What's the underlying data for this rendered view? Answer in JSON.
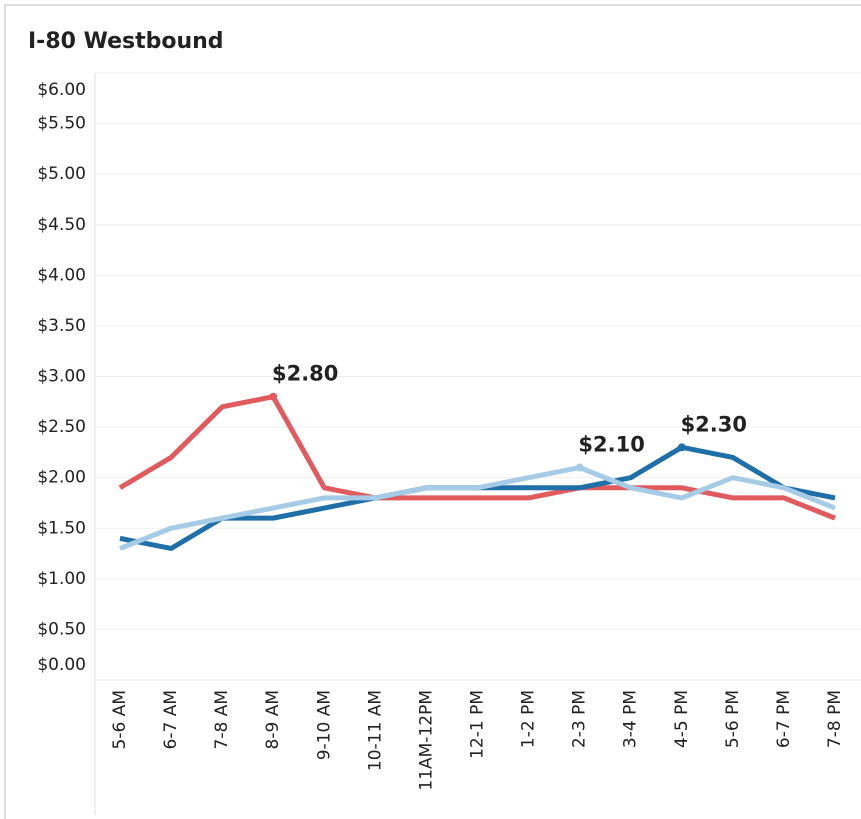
{
  "chart_data": {
    "type": "line",
    "title": "I-80 Westbound",
    "categories": [
      "5-6 AM",
      "6-7 AM",
      "7-8 AM",
      "8-9 AM",
      "9-10 AM",
      "10-11 AM",
      "11AM-12PM",
      "12-1 PM",
      "1-2 PM",
      "2-3 PM",
      "3-4 PM",
      "4-5 PM",
      "5-6 PM",
      "6-7 PM",
      "7-8 PM"
    ],
    "series": [
      {
        "color": "#e05a5e",
        "values": [
          1.9,
          2.2,
          2.7,
          2.8,
          1.9,
          1.8,
          1.8,
          1.8,
          1.8,
          1.9,
          1.9,
          1.9,
          1.8,
          1.8,
          1.6
        ],
        "value_labels": [
          null,
          null,
          null,
          "$2.80",
          null,
          null,
          null,
          null,
          null,
          null,
          null,
          null,
          null,
          null,
          null
        ]
      },
      {
        "color": "#1f6fa8",
        "values": [
          1.4,
          1.3,
          1.6,
          1.6,
          1.7,
          1.8,
          1.9,
          1.9,
          1.9,
          1.9,
          2.0,
          2.3,
          2.2,
          1.9,
          1.8
        ],
        "value_labels": [
          null,
          null,
          null,
          null,
          null,
          null,
          null,
          null,
          null,
          null,
          null,
          "$2.30",
          null,
          null,
          null
        ]
      },
      {
        "color": "#a6cbe6",
        "values": [
          1.3,
          1.5,
          1.6,
          1.7,
          1.8,
          1.8,
          1.9,
          1.9,
          2.0,
          2.1,
          1.9,
          1.8,
          2.0,
          1.9,
          1.7
        ],
        "value_labels": [
          null,
          null,
          null,
          null,
          null,
          null,
          null,
          null,
          null,
          "$2.10",
          null,
          null,
          null,
          null,
          null
        ]
      }
    ],
    "ylim": [
      0,
      6
    ],
    "yticks": [
      {
        "value": 0,
        "label": "$0.00"
      },
      {
        "value": 0.5,
        "label": "$0.50"
      },
      {
        "value": 1,
        "label": "$1.00"
      },
      {
        "value": 1.5,
        "label": "$1.50"
      },
      {
        "value": 2,
        "label": "$2.00"
      },
      {
        "value": 2.5,
        "label": "$2.50"
      },
      {
        "value": 3,
        "label": "$3.00"
      },
      {
        "value": 3.5,
        "label": "$3.50"
      },
      {
        "value": 4,
        "label": "$4.00"
      },
      {
        "value": 4.5,
        "label": "$4.50"
      },
      {
        "value": 5,
        "label": "$5.00"
      },
      {
        "value": 5.5,
        "label": "$5.50"
      },
      {
        "value": 6,
        "label": "$6.00"
      }
    ],
    "grid": true
  }
}
